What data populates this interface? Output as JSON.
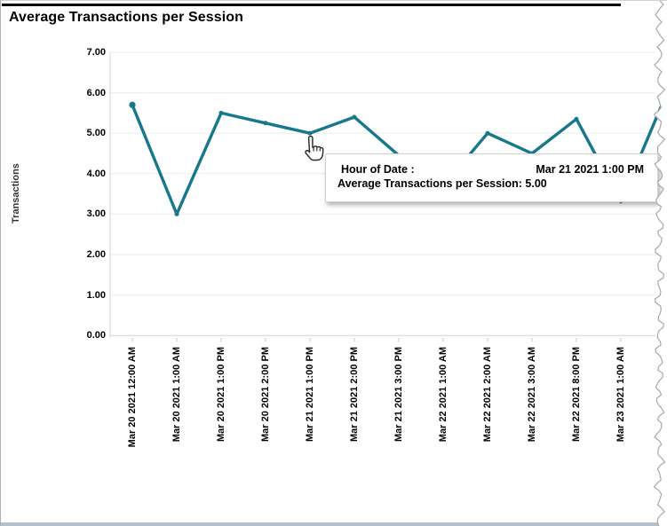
{
  "title": "Average Transactions per Session",
  "y_axis": {
    "label": "Transactions",
    "ticks": [
      "0.00",
      "1.00",
      "2.00",
      "3.00",
      "4.00",
      "5.00",
      "6.00",
      "7.00"
    ]
  },
  "x_axis": {
    "labels": [
      "Mar 20 2021 12:00 AM",
      "Mar 20 2021 1:00 AM",
      "Mar 20 2021 1:00 PM",
      "Mar 20 2021 2:00 PM",
      "Mar 21 2021 1:00 PM",
      "Mar 21 2021 2:00 PM",
      "Mar 21 2021 3:00 PM",
      "Mar 22 2021 1:00 AM",
      "Mar 22 2021 2:00 AM",
      "Mar 22 2021 3:00 AM",
      "Mar 22 2021 8:00 PM",
      "Mar 23 2021 1:00 AM",
      ""
    ]
  },
  "tooltip": {
    "row1_label": "Hour of Date :",
    "row1_value": "Mar 21 2021 1:00 PM",
    "row2": "Average Transactions per Session: 5.00"
  },
  "colors": {
    "line": "#17788c",
    "grid": "#ebebeb",
    "axis": "#d4d4d4",
    "tick": "#c9c9c9",
    "bottom_bar": "#b3c1cf",
    "tear_stroke": "#a8a8a8"
  },
  "chart_data": {
    "type": "line",
    "title": "Average Transactions per Session",
    "xlabel": "Hour of Date",
    "ylabel": "Transactions",
    "ylim": [
      0,
      7
    ],
    "yticks": [
      0,
      1,
      2,
      3,
      4,
      5,
      6,
      7
    ],
    "grid": "horizontal",
    "legend": "none",
    "x": [
      "Mar 20 2021 12:00 AM",
      "Mar 20 2021 1:00 AM",
      "Mar 20 2021 1:00 PM",
      "Mar 20 2021 2:00 PM",
      "Mar 21 2021 1:00 PM",
      "Mar 21 2021 2:00 PM",
      "Mar 21 2021 3:00 PM",
      "Mar 22 2021 1:00 AM",
      "Mar 22 2021 2:00 AM",
      "Mar 22 2021 3:00 AM",
      "Mar 22 2021 8:00 PM",
      "Mar 23 2021 1:00 AM",
      ""
    ],
    "values": [
      5.7,
      3.0,
      5.5,
      5.25,
      5.0,
      5.4,
      4.45,
      3.7,
      5.0,
      4.5,
      5.35,
      3.3,
      5.9
    ],
    "hovered_point": {
      "x": "Mar 21 2021 1:00 PM",
      "value": 5.0,
      "display_value": "5.00"
    }
  }
}
